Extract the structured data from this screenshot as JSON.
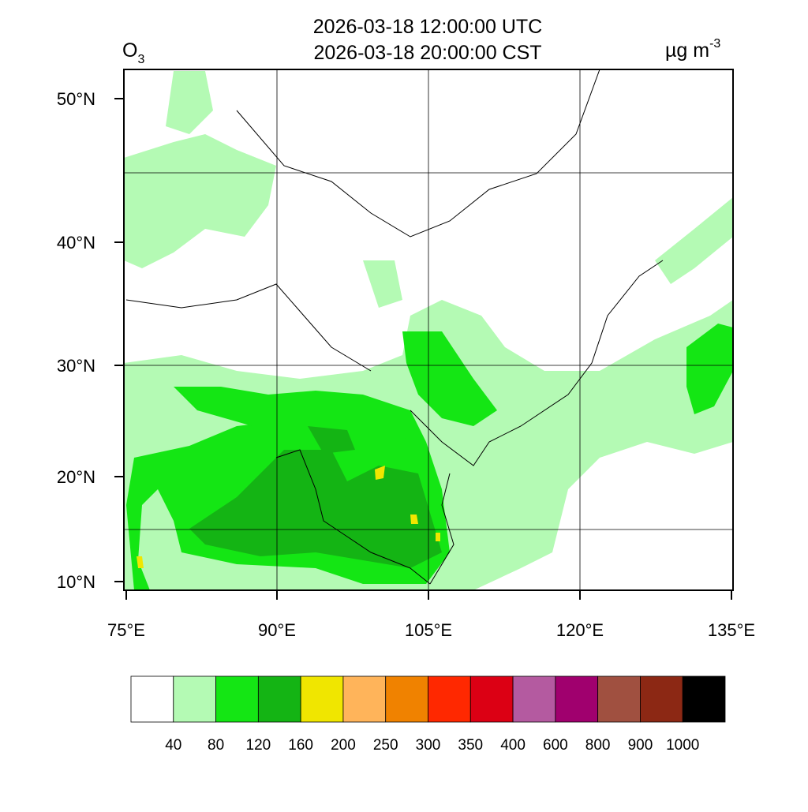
{
  "header": {
    "variable": "O",
    "variable_subscript": "3",
    "time_utc": "2026-03-18 12:00:00 UTC",
    "time_local": "2026-03-18 20:00:00 CST",
    "unit": "µg m",
    "unit_superscript": "-3"
  },
  "axes": {
    "lat_labels": [
      "50°N",
      "40°N",
      "30°N",
      "20°N",
      "10°N"
    ],
    "lon_labels": [
      "75°E",
      "90°E",
      "105°E",
      "120°E",
      "135°E"
    ]
  },
  "colorbar": {
    "labels": [
      "40",
      "80",
      "120",
      "160",
      "200",
      "250",
      "300",
      "350",
      "400",
      "600",
      "800",
      "900",
      "1000"
    ],
    "colors": [
      "#ffffff",
      "#b4fab4",
      "#14e614",
      "#14b414",
      "#f0e600",
      "#ffb45a",
      "#f08200",
      "#ff2800",
      "#dc0014",
      "#b45aa0",
      "#a0006e",
      "#a05040",
      "#8c2814",
      "#000000"
    ]
  }
}
